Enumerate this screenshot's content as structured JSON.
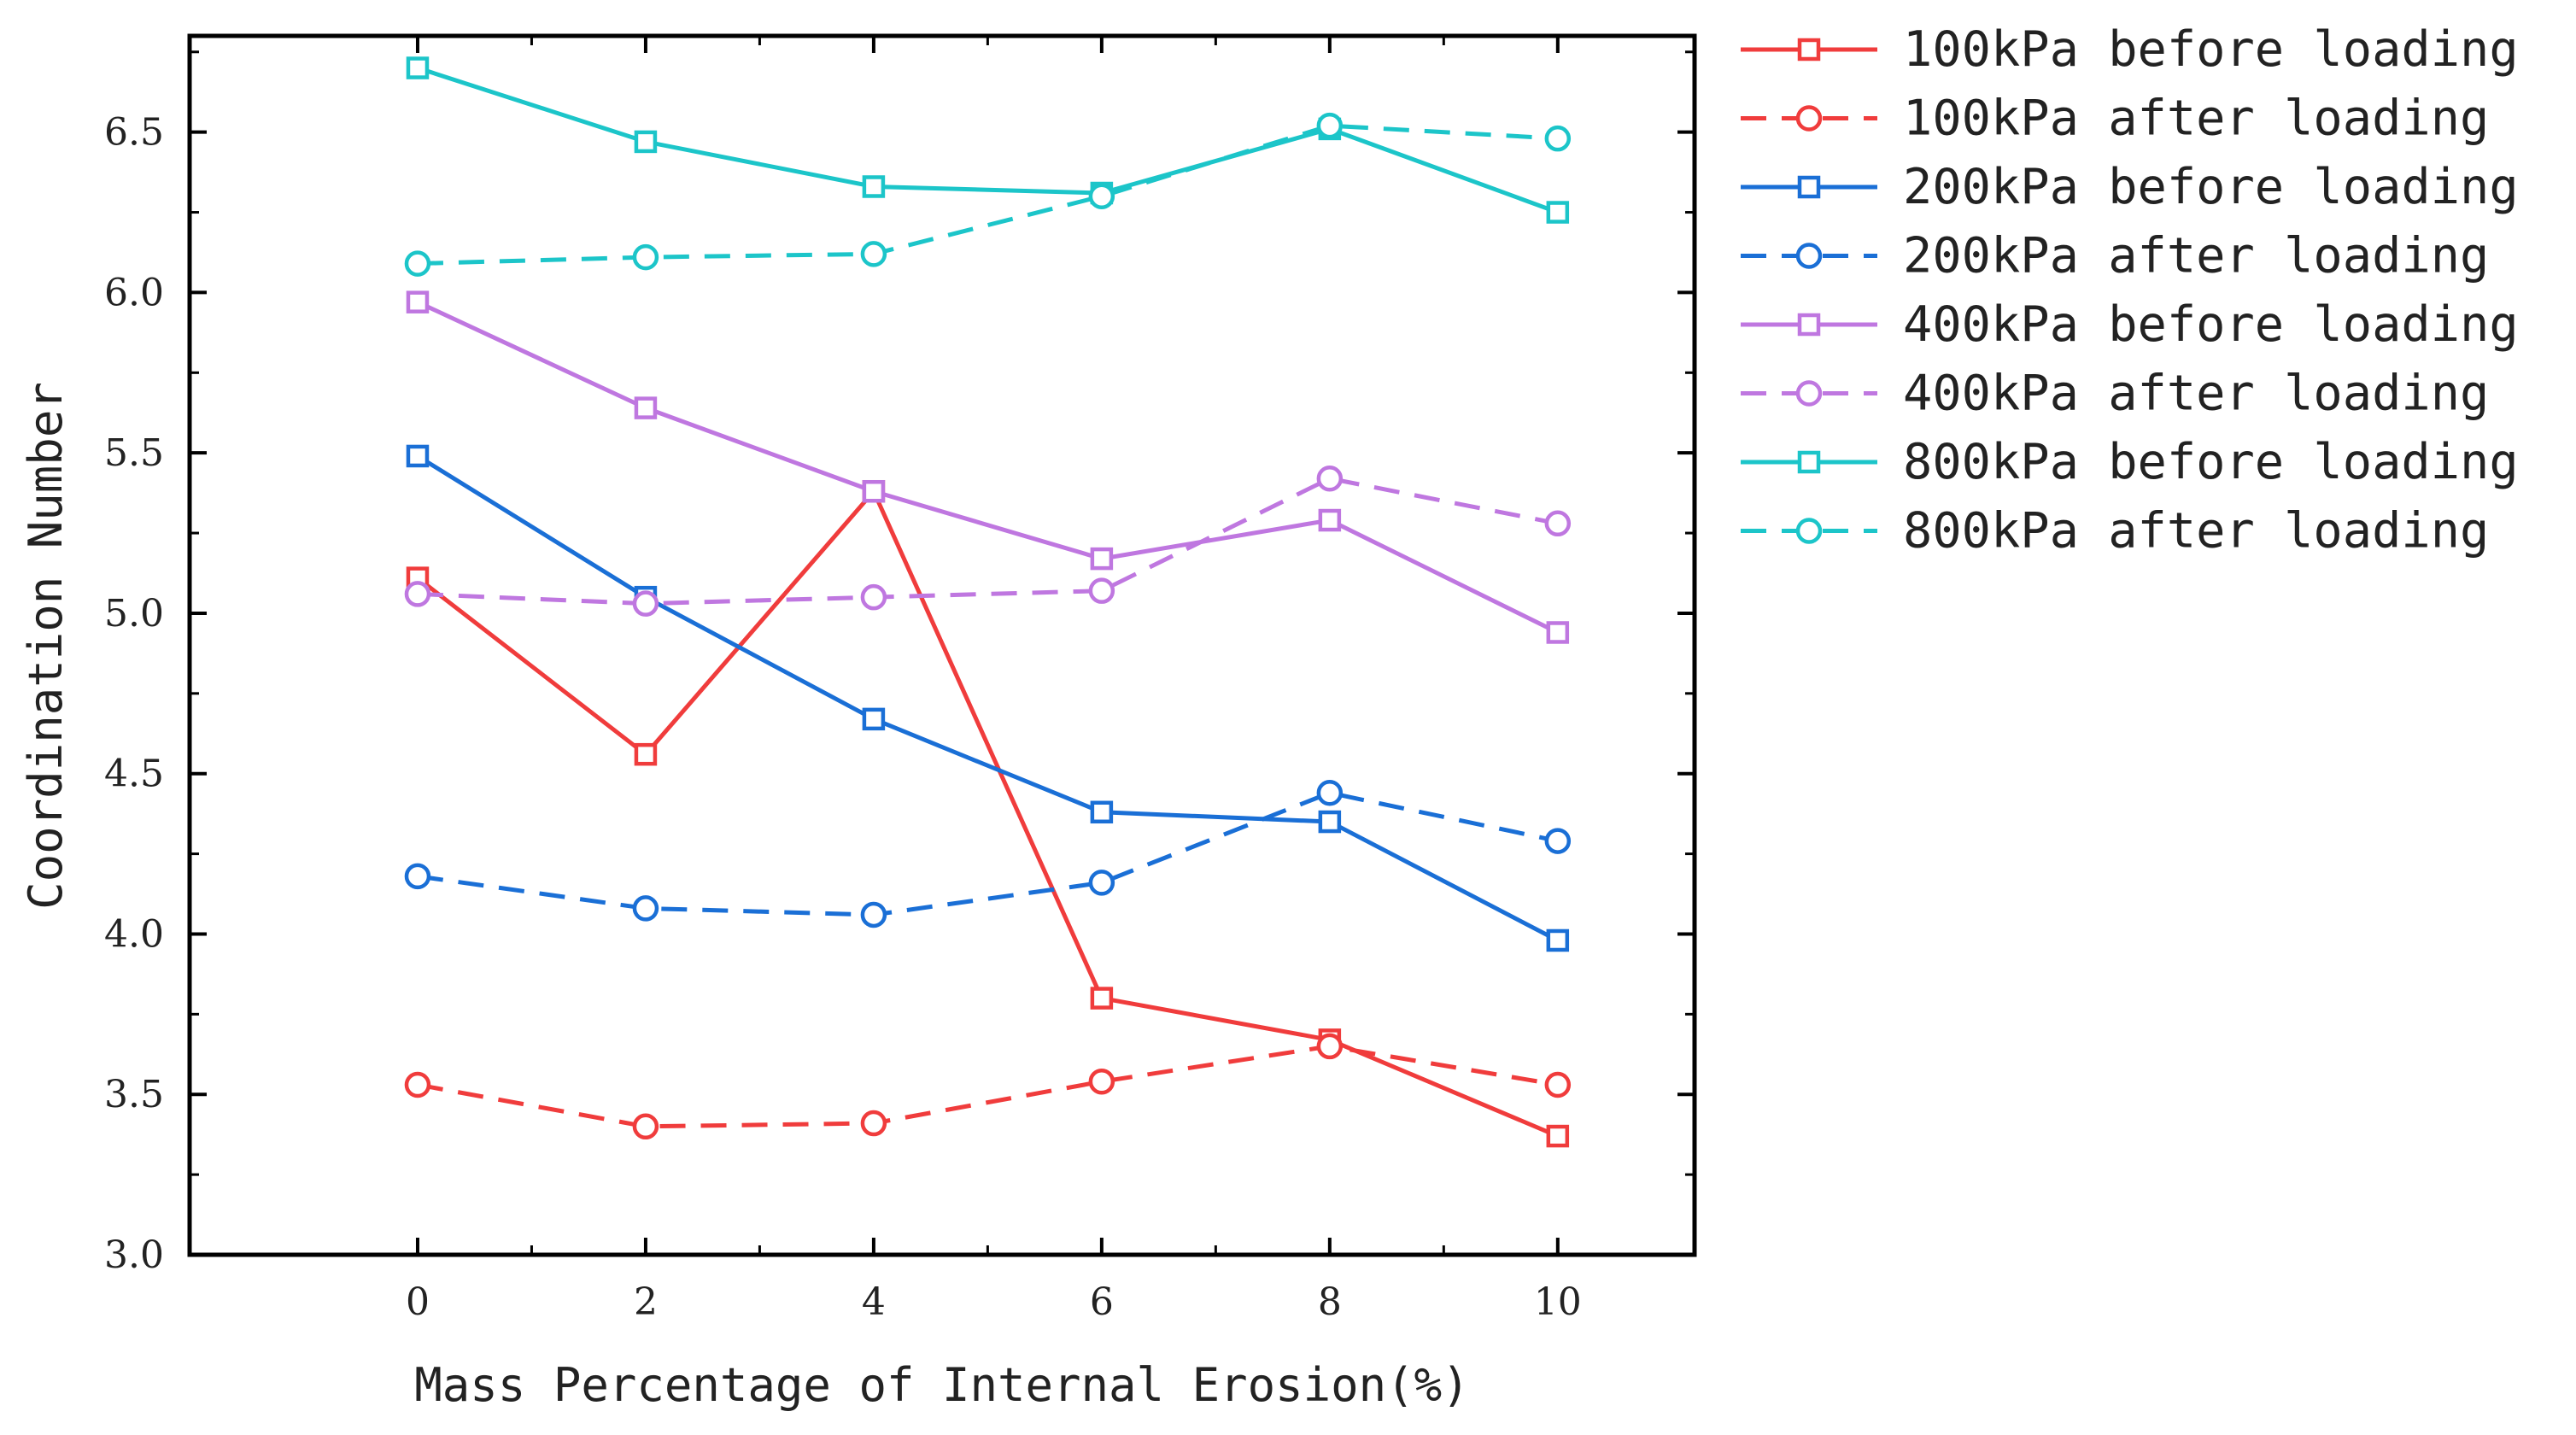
{
  "chart_data": {
    "type": "line",
    "xlabel": "Mass Percentage of Internal Erosion(%)",
    "ylabel": "Coordination Number",
    "x": [
      0,
      2,
      4,
      6,
      8,
      10
    ],
    "xlim": [
      -2,
      11.2
    ],
    "ylim": [
      3.0,
      6.8
    ],
    "xticks": [
      0,
      2,
      4,
      6,
      8,
      10
    ],
    "yticks": [
      3.0,
      3.5,
      4.0,
      4.5,
      5.0,
      5.5,
      6.0,
      6.5
    ],
    "legend_position": "outside-right",
    "series": [
      {
        "name": "100kPa before loading",
        "color": "#f03c3c",
        "dash": "solid",
        "marker": "square",
        "values": [
          5.11,
          4.56,
          5.38,
          3.8,
          3.67,
          3.37
        ]
      },
      {
        "name": "100kPa after loading",
        "color": "#f03c3c",
        "dash": "dashed",
        "marker": "circle",
        "values": [
          3.53,
          3.4,
          3.41,
          3.54,
          3.65,
          3.53
        ]
      },
      {
        "name": "200kPa before loading",
        "color": "#1a6fd6",
        "dash": "solid",
        "marker": "square",
        "values": [
          5.49,
          5.05,
          4.67,
          4.38,
          4.35,
          3.98
        ]
      },
      {
        "name": "200kPa after loading",
        "color": "#1a6fd6",
        "dash": "dashed",
        "marker": "circle",
        "values": [
          4.18,
          4.08,
          4.06,
          4.16,
          4.44,
          4.29
        ]
      },
      {
        "name": "400kPa before loading",
        "color": "#bf77e0",
        "dash": "solid",
        "marker": "square",
        "values": [
          5.97,
          5.64,
          5.38,
          5.17,
          5.29,
          4.94
        ]
      },
      {
        "name": "400kPa after loading",
        "color": "#bf77e0",
        "dash": "dashed",
        "marker": "circle",
        "values": [
          5.06,
          5.03,
          5.05,
          5.07,
          5.42,
          5.28
        ]
      },
      {
        "name": "800kPa before loading",
        "color": "#1cc5c9",
        "dash": "solid",
        "marker": "square",
        "values": [
          6.7,
          6.47,
          6.33,
          6.31,
          6.51,
          6.25
        ]
      },
      {
        "name": "800kPa after loading",
        "color": "#1cc5c9",
        "dash": "dashed",
        "marker": "circle",
        "values": [
          6.09,
          6.11,
          6.12,
          6.3,
          6.52,
          6.48
        ]
      }
    ]
  }
}
